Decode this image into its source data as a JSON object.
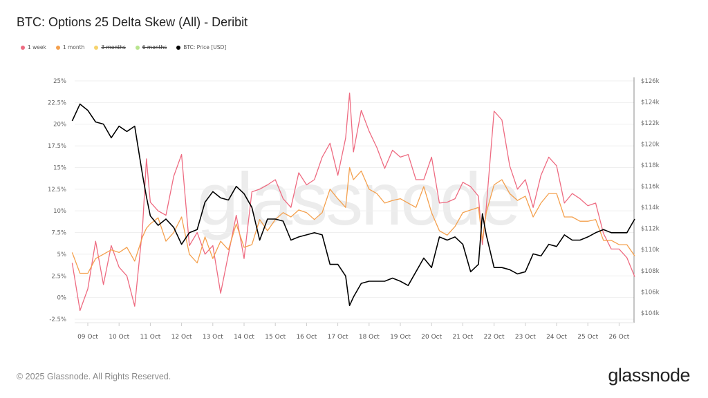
{
  "title": "BTC: Options 25 Delta Skew (All) - Deribit",
  "legend": [
    {
      "label": "1 week",
      "color": "#ee6b81",
      "hidden": false
    },
    {
      "label": "1 month",
      "color": "#f4a04d",
      "hidden": false
    },
    {
      "label": "3 months",
      "color": "#f6d36c",
      "hidden": true
    },
    {
      "label": "6 months",
      "color": "#b7e48d",
      "hidden": true
    },
    {
      "label": "BTC: Price [USD]",
      "color": "#000000",
      "hidden": false
    }
  ],
  "footer": "© 2025 Glassnode. All Rights Reserved.",
  "logo": "glassnode",
  "watermark": "glassnode",
  "chart_data": {
    "type": "line",
    "title": "BTC: Options 25 Delta Skew (All) - Deribit",
    "y_left": {
      "ticks": [
        "25%",
        "22.5%",
        "20%",
        "17.5%",
        "15%",
        "12.5%",
        "10%",
        "7.5%",
        "5%",
        "2.5%",
        "0%",
        "-2.5%"
      ],
      "tick_values": [
        25,
        22.5,
        20,
        17.5,
        15,
        12.5,
        10,
        7.5,
        5,
        2.5,
        0,
        -2.5
      ],
      "range": [
        -2.5,
        25
      ],
      "unit": "%"
    },
    "y_right": {
      "ticks": [
        "$126k",
        "$124k",
        "$122k",
        "$120k",
        "$118k",
        "$116k",
        "$114k",
        "$112k",
        "$110k",
        "$108k",
        "$106k",
        "$104k"
      ],
      "tick_values": [
        126,
        124,
        122,
        120,
        118,
        116,
        114,
        112,
        110,
        108,
        106,
        104
      ],
      "range": [
        103.4,
        126
      ],
      "unit": "USD thousands"
    },
    "x_ticks": [
      {
        "label": "09 Oct",
        "date": "2025-10-09"
      },
      {
        "label": "10 Oct",
        "date": "2025-10-10"
      },
      {
        "label": "11 Oct",
        "date": "2025-10-11"
      },
      {
        "label": "12 Oct",
        "date": "2025-10-12"
      },
      {
        "label": "13 Oct",
        "date": "2025-10-13"
      },
      {
        "label": "14 Oct",
        "date": "2025-10-14"
      },
      {
        "label": "15 Oct",
        "date": "2025-10-15"
      },
      {
        "label": "16 Oct",
        "date": "2025-10-16"
      },
      {
        "label": "17 Oct",
        "date": "2025-10-17"
      },
      {
        "label": "18 Oct",
        "date": "2025-10-18"
      },
      {
        "label": "19 Oct",
        "date": "2025-10-19"
      },
      {
        "label": "20 Oct",
        "date": "2025-10-20"
      },
      {
        "label": "21 Oct",
        "date": "2025-10-21"
      },
      {
        "label": "22 Oct",
        "date": "2025-10-22"
      },
      {
        "label": "23 Oct",
        "date": "2025-10-23"
      },
      {
        "label": "24 Oct",
        "date": "2025-10-24"
      },
      {
        "label": "25 Oct",
        "date": "2025-10-25"
      },
      {
        "label": "26 Oct",
        "date": "2025-10-26"
      }
    ],
    "grid": "horizontal",
    "legend_position": "top-left",
    "x": [
      "2025-10-08T12:00",
      "2025-10-08T18:00",
      "2025-10-09T00:00",
      "2025-10-09T06:00",
      "2025-10-09T12:00",
      "2025-10-09T18:00",
      "2025-10-10T00:00",
      "2025-10-10T06:00",
      "2025-10-10T12:00",
      "2025-10-10T18:00",
      "2025-10-10T21:00",
      "2025-10-11T00:00",
      "2025-10-11T06:00",
      "2025-10-11T12:00",
      "2025-10-11T18:00",
      "2025-10-12T00:00",
      "2025-10-12T06:00",
      "2025-10-12T12:00",
      "2025-10-12T18:00",
      "2025-10-13T00:00",
      "2025-10-13T06:00",
      "2025-10-13T12:00",
      "2025-10-13T18:00",
      "2025-10-14T00:00",
      "2025-10-14T06:00",
      "2025-10-14T12:00",
      "2025-10-14T18:00",
      "2025-10-15T00:00",
      "2025-10-15T06:00",
      "2025-10-15T12:00",
      "2025-10-15T18:00",
      "2025-10-16T00:00",
      "2025-10-16T06:00",
      "2025-10-16T12:00",
      "2025-10-16T18:00",
      "2025-10-17T00:00",
      "2025-10-17T06:00",
      "2025-10-17T09:00",
      "2025-10-17T12:00",
      "2025-10-17T18:00",
      "2025-10-18T00:00",
      "2025-10-18T06:00",
      "2025-10-18T12:00",
      "2025-10-18T18:00",
      "2025-10-19T00:00",
      "2025-10-19T06:00",
      "2025-10-19T12:00",
      "2025-10-19T18:00",
      "2025-10-20T00:00",
      "2025-10-20T06:00",
      "2025-10-20T12:00",
      "2025-10-20T18:00",
      "2025-10-21T00:00",
      "2025-10-21T06:00",
      "2025-10-21T12:00",
      "2025-10-21T15:00",
      "2025-10-21T18:00",
      "2025-10-22T00:00",
      "2025-10-22T06:00",
      "2025-10-22T12:00",
      "2025-10-22T18:00",
      "2025-10-23T00:00",
      "2025-10-23T06:00",
      "2025-10-23T12:00",
      "2025-10-23T18:00",
      "2025-10-24T00:00",
      "2025-10-24T06:00",
      "2025-10-24T12:00",
      "2025-10-24T18:00",
      "2025-10-25T00:00",
      "2025-10-25T06:00",
      "2025-10-25T12:00",
      "2025-10-25T18:00",
      "2025-10-26T00:00",
      "2025-10-26T06:00",
      "2025-10-26T12:00"
    ],
    "series": [
      {
        "name": "1 week",
        "axis": "left",
        "color": "#ee6b81",
        "values": [
          4,
          -1.5,
          1,
          6.5,
          1.5,
          6,
          3.5,
          2.5,
          -1,
          8,
          16,
          11,
          10,
          9.5,
          14,
          16.5,
          6,
          7.5,
          5,
          6,
          0.5,
          5,
          9.5,
          4.5,
          12.2,
          12.5,
          13,
          13.6,
          11.4,
          10.4,
          14.4,
          13,
          13.6,
          16.2,
          17.8,
          14.1,
          18.4,
          23.6,
          16.8,
          21.6,
          19.2,
          17.3,
          14.9,
          17,
          16.2,
          16.5,
          13.6,
          13.6,
          16.2,
          10.9,
          11,
          11.4,
          13.3,
          12.8,
          11.7,
          6.1,
          10.4,
          21.5,
          20.5,
          15.2,
          12.5,
          13.6,
          10.4,
          14.1,
          16.2,
          15.2,
          10.9,
          12,
          11.4,
          10.6,
          10.9,
          7.4,
          5.6,
          5.6,
          4.6,
          2.4
        ]
      },
      {
        "name": "1 month",
        "axis": "left",
        "color": "#f4a04d",
        "values": [
          5.2,
          2.8,
          2.8,
          4.5,
          5,
          5.5,
          5.2,
          5.8,
          4.2,
          7,
          8,
          8.5,
          9.2,
          6.5,
          7.5,
          9.3,
          5,
          4,
          7,
          4.5,
          6.5,
          5.5,
          8.5,
          5.8,
          6.1,
          9,
          7.7,
          9,
          9.8,
          9.3,
          10.1,
          9.8,
          9,
          9.8,
          12.5,
          11.4,
          10.4,
          15,
          13.6,
          14.6,
          12.5,
          12,
          10.9,
          11.2,
          11.4,
          10.9,
          10.4,
          12.8,
          9.8,
          7.7,
          7.2,
          8.2,
          9.8,
          10.1,
          10.4,
          6.6,
          9.8,
          13,
          13.6,
          12,
          11.2,
          11.7,
          9.3,
          10.9,
          12,
          12,
          9.3,
          9.3,
          8.8,
          8.8,
          9,
          6.6,
          6.6,
          6.1,
          6.1,
          4.8
        ]
      },
      {
        "name": "BTC: Price [USD]",
        "axis": "right",
        "color": "#000000",
        "values": [
          122.2,
          123.8,
          123.2,
          122.1,
          121.9,
          120.6,
          121.7,
          121.2,
          121.7,
          117.1,
          115,
          113.2,
          112.3,
          112.9,
          112.1,
          110.5,
          111.6,
          111.9,
          114.5,
          115.5,
          114.9,
          114.7,
          116,
          115.3,
          114,
          110.9,
          112.9,
          112.9,
          112.7,
          110.9,
          111.2,
          111.4,
          111.6,
          111.4,
          108.6,
          108.6,
          107.5,
          104.7,
          105.5,
          106.8,
          107,
          107,
          107,
          107.3,
          107,
          106.6,
          107.9,
          109.2,
          108.3,
          111.2,
          110.9,
          111.2,
          110.5,
          107.9,
          108.6,
          113.4,
          111.4,
          108.3,
          108.3,
          108.1,
          107.7,
          107.9,
          109.6,
          109.4,
          110.5,
          110.3,
          111.4,
          110.9,
          110.9,
          111.2,
          111.6,
          111.9,
          111.6,
          111.6,
          111.6,
          112.9
        ]
      }
    ]
  }
}
